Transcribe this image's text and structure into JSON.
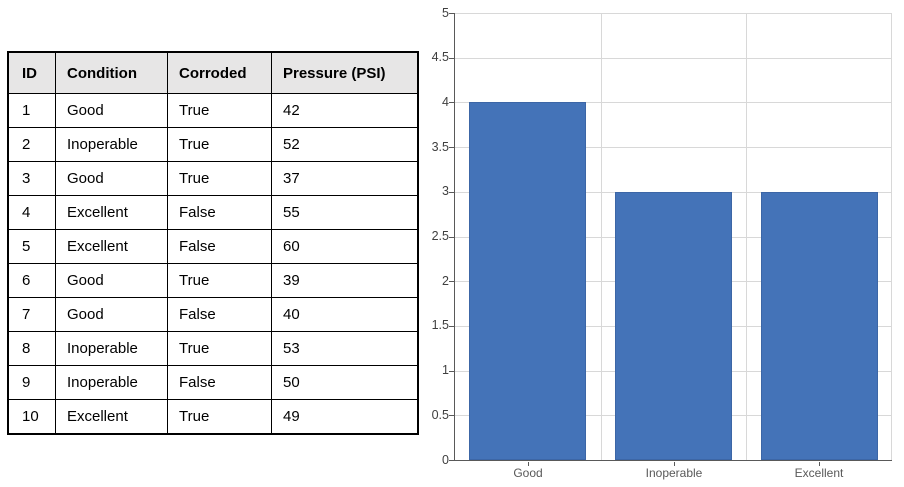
{
  "page": {
    "background": "#ffffff"
  },
  "table": {
    "columns": [
      "ID",
      "Condition",
      "Corroded",
      "Pressure (PSI)"
    ],
    "rows": [
      [
        "1",
        "Good",
        "True",
        "42"
      ],
      [
        "2",
        "Inoperable",
        "True",
        "52"
      ],
      [
        "3",
        "Good",
        "True",
        "37"
      ],
      [
        "4",
        "Excellent",
        "False",
        "55"
      ],
      [
        "5",
        "Excellent",
        "False",
        "60"
      ],
      [
        "6",
        "Good",
        "True",
        "39"
      ],
      [
        "7",
        "Good",
        "False",
        "40"
      ],
      [
        "8",
        "Inoperable",
        "True",
        "53"
      ],
      [
        "9",
        "Inoperable",
        "False",
        "50"
      ],
      [
        "10",
        "Excellent",
        "True",
        "49"
      ]
    ],
    "style": {
      "header_bg": "#E7E6E6",
      "border_color": "#000000"
    }
  },
  "chart_data": {
    "type": "bar",
    "categories": [
      "Good",
      "Inoperable",
      "Excellent"
    ],
    "values": [
      4,
      3,
      3
    ],
    "title": "",
    "xlabel": "",
    "ylabel": "",
    "ylim": [
      0,
      5
    ],
    "yticks": [
      0,
      0.5,
      1,
      1.5,
      2,
      2.5,
      3,
      3.5,
      4,
      4.5,
      5
    ],
    "grid": true,
    "legend": false,
    "bar_width_frac": 0.8,
    "colors": {
      "bar_fill": "#4473B8",
      "bar_border": "#3C66A6",
      "gridline": "#D8D8D8",
      "axis": "#595959",
      "ytick_label": "#3F3F3F",
      "xtick_label": "#595959"
    }
  }
}
